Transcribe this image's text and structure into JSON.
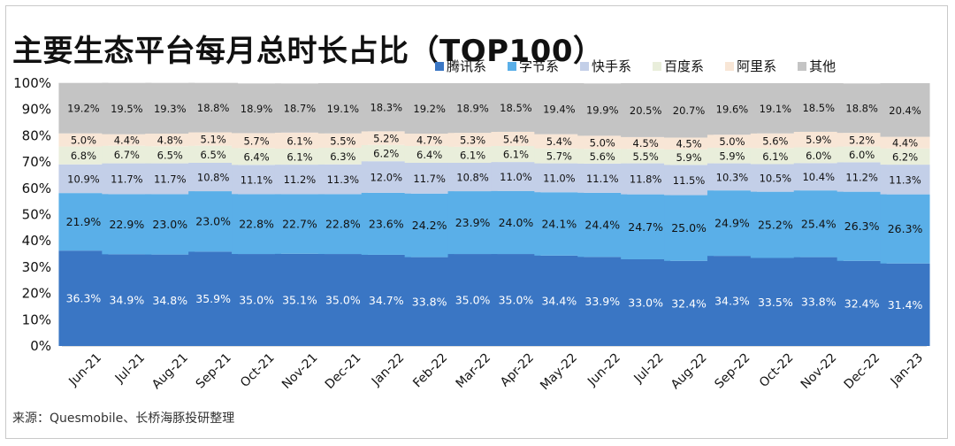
{
  "chart_data": {
    "type": "bar",
    "stacked": true,
    "title": "主要生态平台每月总时长占比（TOP100）",
    "categories": [
      "Jun-21",
      "Jul-21",
      "Aug-21",
      "Sep-21",
      "Oct-21",
      "Nov-21",
      "Dec-21",
      "Jan-22",
      "Feb-22",
      "Mar-22",
      "Apr-22",
      "May-22",
      "Jun-22",
      "Jul-22",
      "Aug-22",
      "Sep-22",
      "Oct-22",
      "Nov-22",
      "Dec-22",
      "Jan-23"
    ],
    "yticks": [
      "0%",
      "10%",
      "20%",
      "30%",
      "40%",
      "50%",
      "60%",
      "70%",
      "80%",
      "90%",
      "100%"
    ],
    "ylim": [
      0,
      100
    ],
    "legend_position": "top-right",
    "series": [
      {
        "name": "腾讯系",
        "color": "#3a76c4",
        "label_color": "#ffffff",
        "values": [
          36.3,
          34.9,
          34.8,
          35.9,
          35.0,
          35.1,
          35.0,
          34.7,
          33.8,
          35.0,
          35.0,
          34.4,
          33.9,
          33.0,
          32.4,
          34.3,
          33.5,
          33.8,
          32.4,
          31.4
        ],
        "labels": [
          "36.3%",
          "34.9%",
          "34.8%",
          "35.9%",
          "35.0%",
          "35.1%",
          "35.0%",
          "34.7%",
          "33.8%",
          "35.0%",
          "35.0%",
          "34.4%",
          "33.9%",
          "33.0%",
          "32.4%",
          "34.3%",
          "33.5%",
          "33.8%",
          "32.4%",
          "31.4%"
        ]
      },
      {
        "name": "字节系",
        "color": "#5aafe8",
        "label_color": "#111111",
        "values": [
          21.9,
          22.9,
          23.0,
          23.0,
          22.8,
          22.7,
          22.8,
          23.6,
          24.2,
          23.9,
          24.0,
          24.1,
          24.4,
          24.7,
          25.0,
          24.9,
          25.2,
          25.4,
          26.3,
          26.3
        ],
        "labels": [
          "21.9%",
          "22.9%",
          "23.0%",
          "23.0%",
          "22.8%",
          "22.7%",
          "22.8%",
          "23.6%",
          "24.2%",
          "23.9%",
          "24.0%",
          "24.1%",
          "24.4%",
          "24.7%",
          "25.0%",
          "24.9%",
          "25.2%",
          "25.4%",
          "26.3%",
          "26.3%"
        ]
      },
      {
        "name": "快手系",
        "color": "#c3cfe8",
        "label_color": "#111111",
        "values": [
          10.9,
          11.7,
          11.7,
          10.8,
          11.1,
          11.2,
          11.3,
          12.0,
          11.7,
          10.8,
          11.0,
          11.0,
          11.1,
          11.8,
          11.5,
          10.3,
          10.5,
          10.4,
          11.2,
          11.3
        ],
        "labels": [
          "10.9%",
          "11.7%",
          "11.7%",
          "10.8%",
          "11.1%",
          "11.2%",
          "11.3%",
          "12.0%",
          "11.7%",
          "10.8%",
          "11.0%",
          "11.0%",
          "11.1%",
          "11.8%",
          "11.5%",
          "10.3%",
          "10.5%",
          "10.4%",
          "11.2%",
          "11.3%"
        ]
      },
      {
        "name": "百度系",
        "color": "#e9eedb",
        "label_color": "#111111",
        "values": [
          6.8,
          6.7,
          6.5,
          6.5,
          6.4,
          6.1,
          6.3,
          6.2,
          6.4,
          6.1,
          6.1,
          5.7,
          5.6,
          5.5,
          5.9,
          5.9,
          6.1,
          6.0,
          6.0,
          6.2
        ],
        "labels": [
          "6.8%",
          "6.7%",
          "6.5%",
          "6.5%",
          "6.4%",
          "6.1%",
          "6.3%",
          "6.2%",
          "6.4%",
          "6.1%",
          "6.1%",
          "5.7%",
          "5.6%",
          "5.5%",
          "5.9%",
          "5.9%",
          "6.1%",
          "6.0%",
          "6.0%",
          "6.2%"
        ]
      },
      {
        "name": "阿里系",
        "color": "#f8e6d6",
        "label_color": "#111111",
        "values": [
          5.0,
          4.4,
          4.8,
          5.1,
          5.7,
          6.1,
          5.5,
          5.2,
          4.7,
          5.3,
          5.4,
          5.4,
          5.0,
          4.5,
          4.5,
          5.0,
          5.6,
          5.9,
          5.2,
          4.4
        ],
        "labels": [
          "5.0%",
          "4.4%",
          "4.8%",
          "5.1%",
          "5.7%",
          "6.1%",
          "5.5%",
          "5.2%",
          "4.7%",
          "5.3%",
          "5.4%",
          "5.4%",
          "5.0%",
          "4.5%",
          "4.5%",
          "5.0%",
          "5.6%",
          "5.9%",
          "5.2%",
          "4.4%"
        ]
      },
      {
        "name": "其他",
        "color": "#c4c4c4",
        "label_color": "#111111",
        "values": [
          19.2,
          19.5,
          19.3,
          18.8,
          18.9,
          18.7,
          19.1,
          18.3,
          19.2,
          18.9,
          18.5,
          19.4,
          19.9,
          20.5,
          20.7,
          19.6,
          19.1,
          18.5,
          18.8,
          20.4
        ],
        "labels": [
          "19.2%",
          "19.5%",
          "19.3%",
          "18.8%",
          "18.9%",
          "18.7%",
          "19.1%",
          "18.3%",
          "19.2%",
          "18.9%",
          "18.5%",
          "19.4%",
          "19.9%",
          "20.5%",
          "20.7%",
          "19.6%",
          "19.1%",
          "18.5%",
          "18.8%",
          "20.4%"
        ]
      }
    ]
  },
  "source_note": "来源：Quesmobile、长桥海豚投研整理"
}
